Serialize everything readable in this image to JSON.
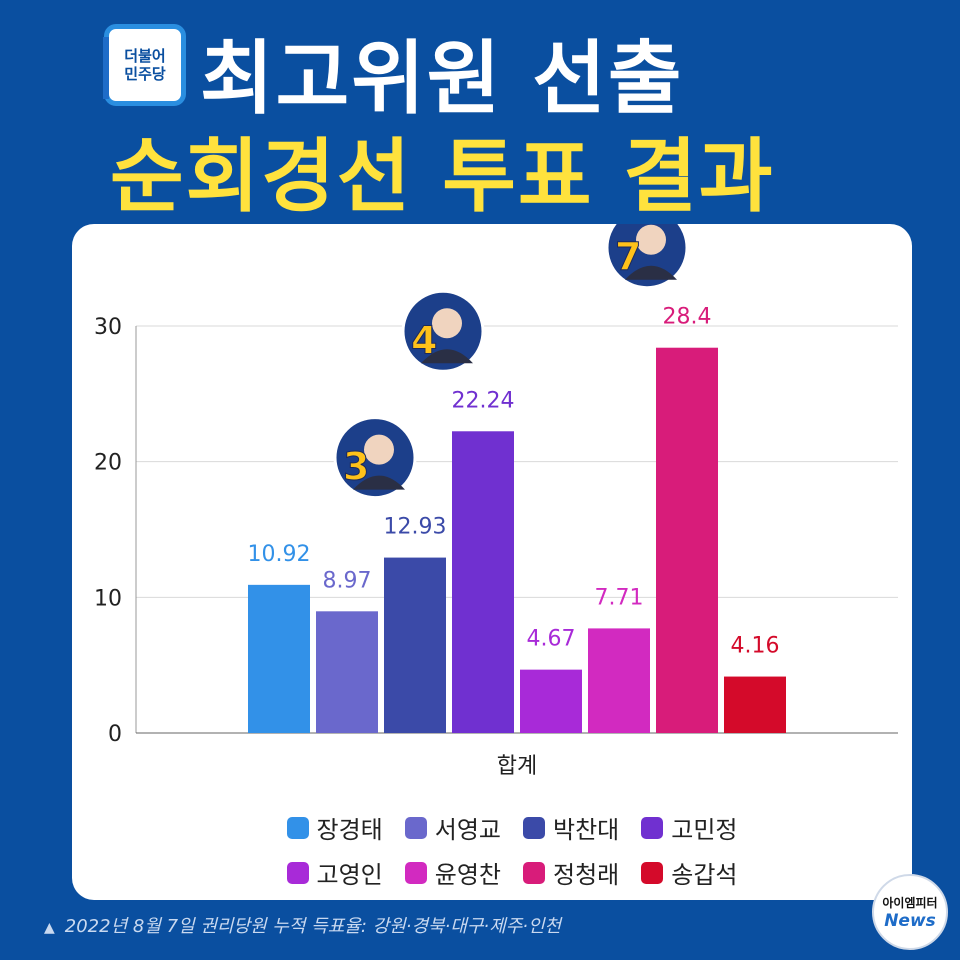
{
  "logo": {
    "line1": "더불어",
    "line2": "민주당"
  },
  "title": {
    "line1": "최고위원 선출",
    "line2": "순회경선 투표 결과"
  },
  "chart_data": {
    "type": "bar",
    "categories": [
      "합계"
    ],
    "xlabel": "합계",
    "ylim": [
      0,
      30
    ],
    "yticks": [
      0,
      10,
      20,
      30
    ],
    "grid": true,
    "legend_position": "bottom",
    "series": [
      {
        "name": "장경태",
        "values": [
          10.92
        ],
        "color": "#3291e8"
      },
      {
        "name": "서영교",
        "values": [
          8.97
        ],
        "color": "#6a68cc"
      },
      {
        "name": "박찬대",
        "values": [
          12.93
        ],
        "color": "#3b4aa8"
      },
      {
        "name": "고민정",
        "values": [
          22.24
        ],
        "color": "#7030d0"
      },
      {
        "name": "고영인",
        "values": [
          4.67
        ],
        "color": "#a82ad8"
      },
      {
        "name": "윤영찬",
        "values": [
          7.71
        ],
        "color": "#d22ac0"
      },
      {
        "name": "정청래",
        "values": [
          28.4
        ],
        "color": "#d81c7a"
      },
      {
        "name": "송갑석",
        "values": [
          4.16
        ],
        "color": "#d40a2a"
      }
    ],
    "value_labels": [
      "10.92",
      "8.97",
      "12.93",
      "22.24",
      "4.67",
      "7.71",
      "28.4",
      "4.16"
    ],
    "badges": [
      {
        "series": "박찬대",
        "number": "3"
      },
      {
        "series": "고민정",
        "number": "4"
      },
      {
        "series": "정청래",
        "number": "7"
      }
    ]
  },
  "footnote": "2022년 8월 7일 권리당원 누적 득표율: 강원·경북·대구·제주·인천",
  "news_badge": {
    "line1": "아이엠피터",
    "line2": "News"
  }
}
